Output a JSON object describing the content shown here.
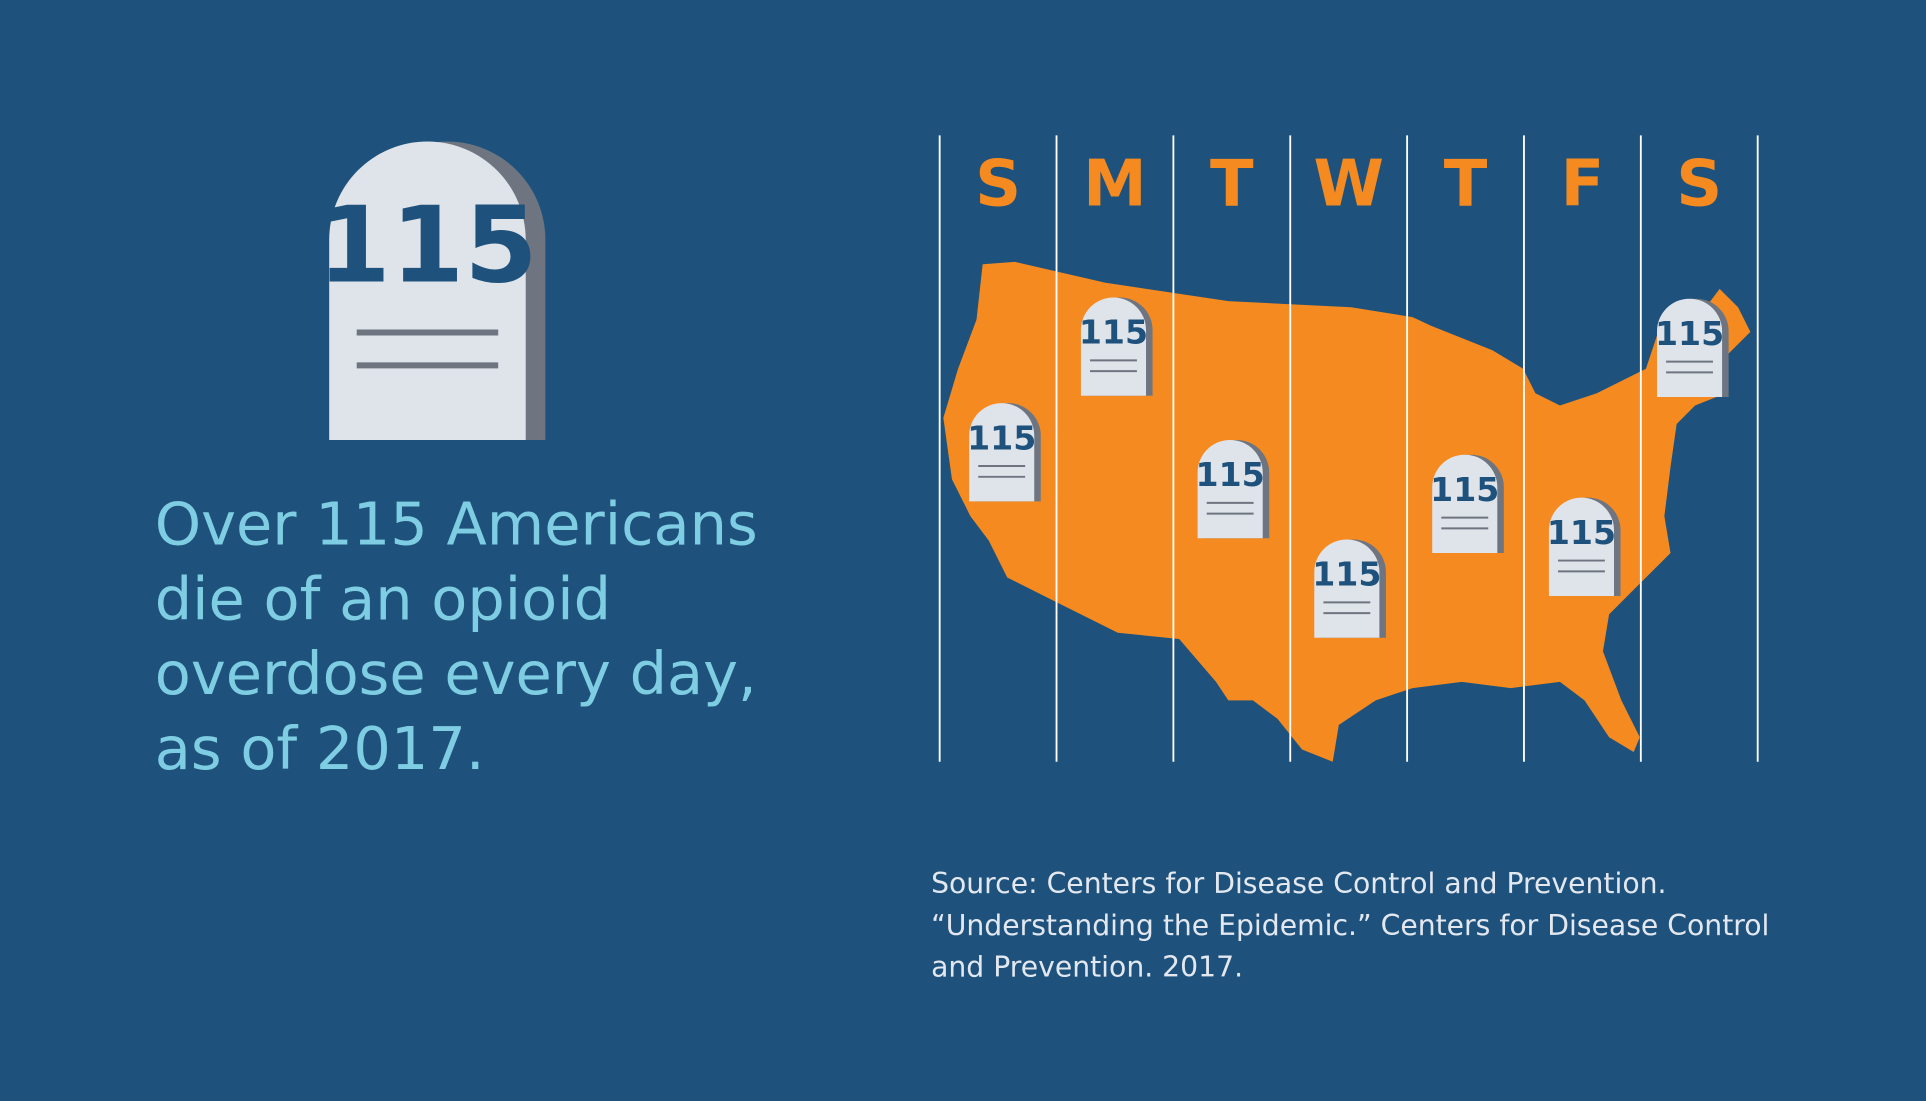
{
  "hero": {
    "number": "115"
  },
  "headline": [
    "Over 115 Americans",
    "die of an opioid",
    "overdose every day,",
    "as of 2017."
  ],
  "days": [
    "S",
    "M",
    "T",
    "W",
    "T",
    "F",
    "S"
  ],
  "map_markers": [
    "115",
    "115",
    "115",
    "115",
    "115",
    "115",
    "115"
  ],
  "source": [
    "Source: Centers for Disease Control and Prevention.",
    "“Understanding the Epidemic.” Centers for Disease Control",
    "and Prevention. 2017."
  ]
}
